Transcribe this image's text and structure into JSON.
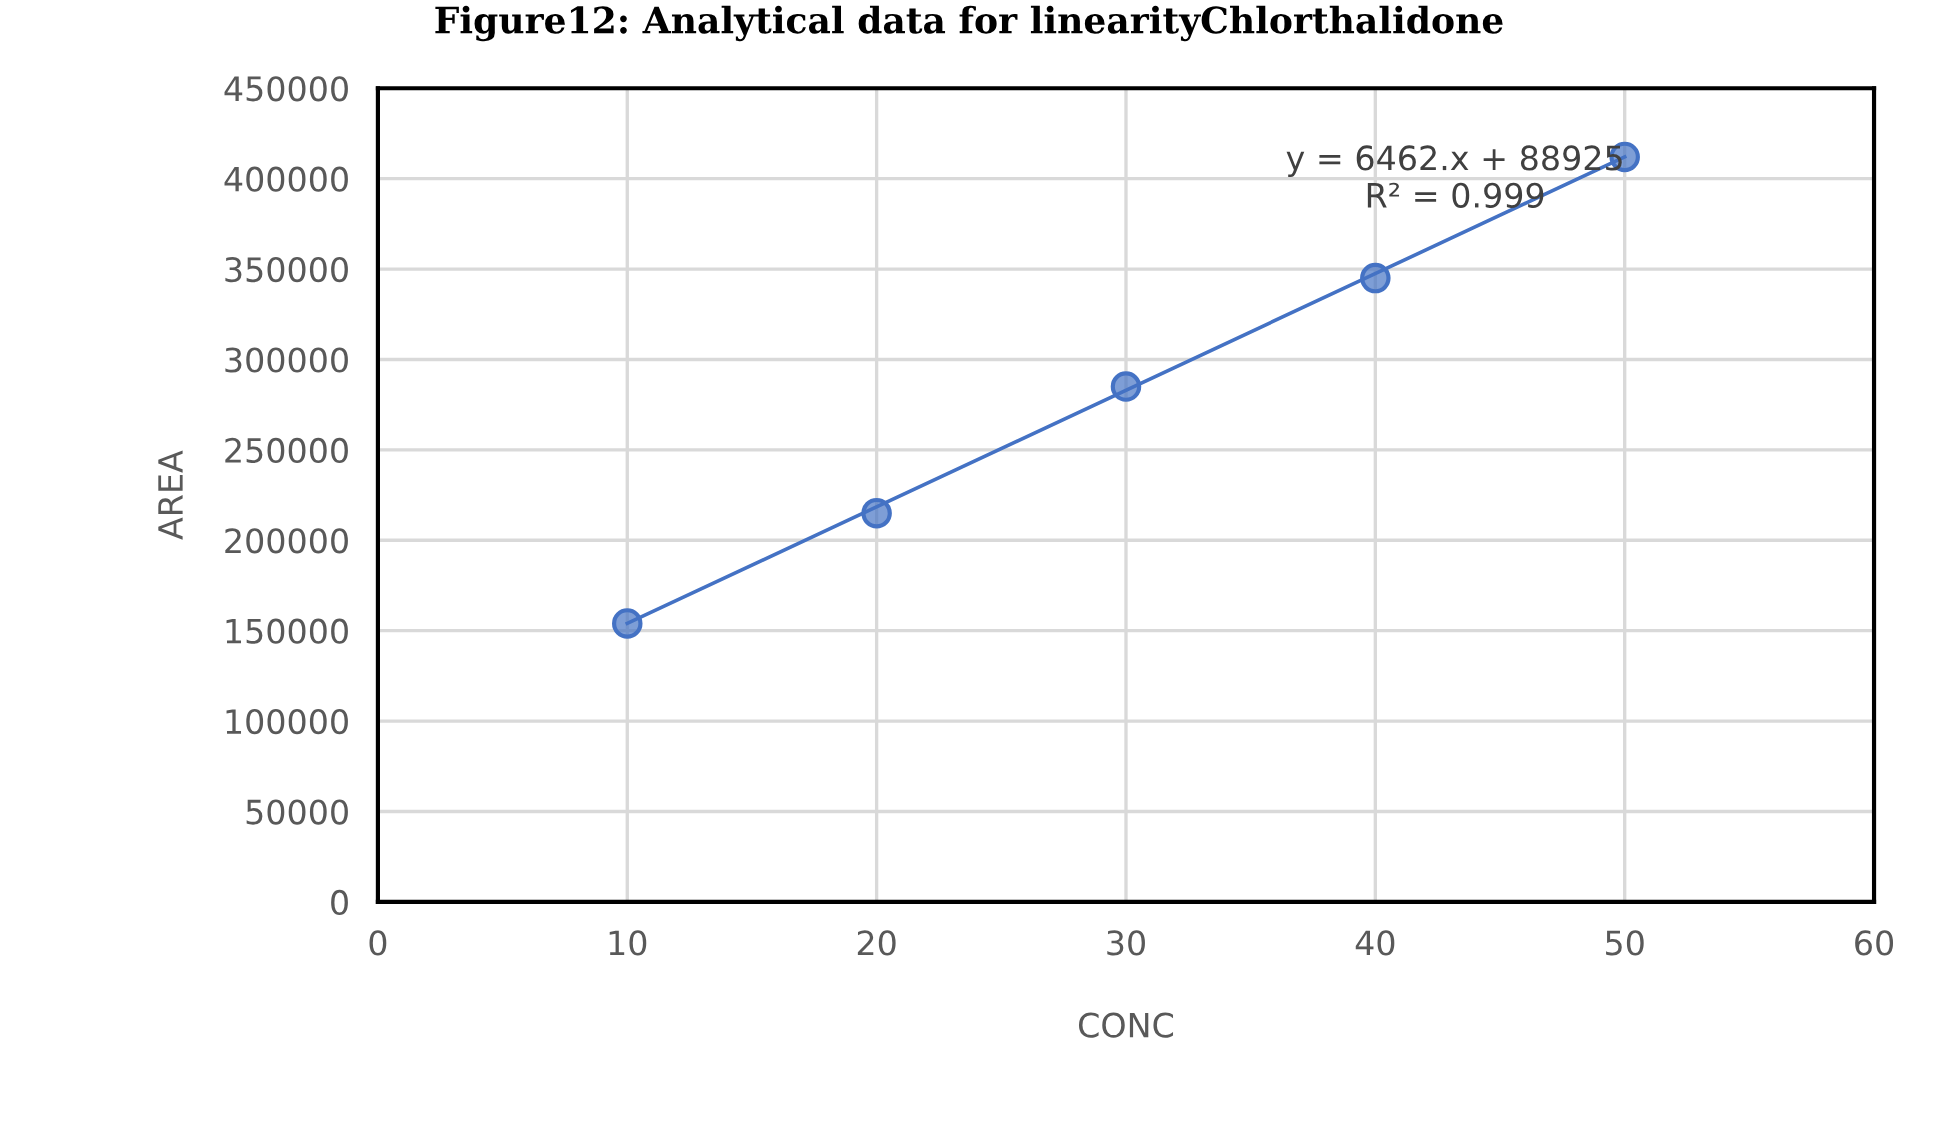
{
  "chart_data": {
    "type": "scatter",
    "title": "Figure12: Analytical data for linearityChlorthalidone",
    "xlabel": "CONC",
    "ylabel": "AREA",
    "x": [
      10,
      20,
      30,
      40,
      50
    ],
    "series": [
      {
        "color": "#4472c4",
        "marker": "circle",
        "values": [
          154000,
          215000,
          285000,
          345000,
          412000
        ]
      },
      {
        "type": "line",
        "color": "#4472c4",
        "x": [
          10,
          50
        ],
        "values": [
          154000,
          412000
        ],
        "marker": "none",
        "line_style": "solid"
      }
    ],
    "annotations": [
      "y = 6462.x + 88925\nR² = 0.999"
    ],
    "xlim": [
      0,
      60
    ],
    "xticks": [
      0,
      10,
      20,
      30,
      40,
      50,
      60
    ],
    "ylim": [
      0,
      450000
    ],
    "yticks": [
      0,
      50000,
      100000,
      150000,
      200000,
      250000,
      300000,
      350000,
      400000,
      450000
    ],
    "grid": true,
    "legend": false
  }
}
